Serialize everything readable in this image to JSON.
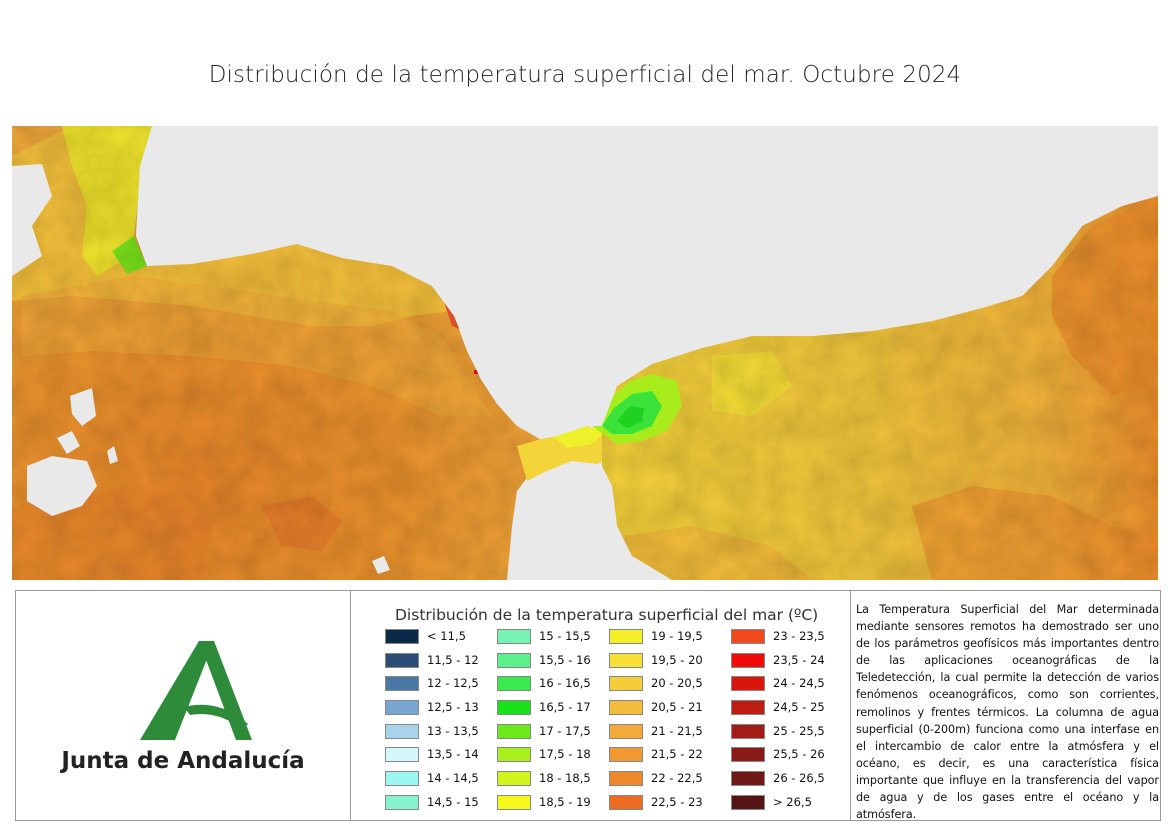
{
  "title": "Distribución de la temperatura superficial del mar. Octubre 2024",
  "map": {
    "land_color": "#e9e9e9",
    "dominant_colors": [
      "#e88a2a",
      "#f1a43a",
      "#f3bf3c",
      "#f4d63a",
      "#eef02a",
      "#9cf01c",
      "#34e22a",
      "#e8452a"
    ]
  },
  "logo": {
    "text": "Junta de Andalucía",
    "color": "#2e8b3a"
  },
  "legend": {
    "title": "Distribución de la temperatura superficial del mar (ºC)",
    "columns": [
      [
        {
          "label": "< 11,5",
          "color": "#0b2a4a"
        },
        {
          "label": "11,5 - 12",
          "color": "#2b4f74"
        },
        {
          "label": "12 - 12,5",
          "color": "#4a78a4"
        },
        {
          "label": "12,5 - 13",
          "color": "#79a6d0"
        },
        {
          "label": "13 - 13,5",
          "color": "#a9d3e8"
        },
        {
          "label": "13,5 - 14",
          "color": "#d3f8fb"
        },
        {
          "label": "14 - 14,5",
          "color": "#9ef6f2"
        },
        {
          "label": "14,5 - 15",
          "color": "#88f2cc"
        }
      ],
      [
        {
          "label": "15 - 15,5",
          "color": "#78f2b2"
        },
        {
          "label": "15,5 - 16",
          "color": "#5ef08a"
        },
        {
          "label": "16 - 16,5",
          "color": "#3ae94e"
        },
        {
          "label": "16,5 - 17",
          "color": "#1ae21a"
        },
        {
          "label": "17 - 17,5",
          "color": "#6de81a"
        },
        {
          "label": "17,5 - 18",
          "color": "#a8f01c"
        },
        {
          "label": "18 - 18,5",
          "color": "#d3f31c"
        },
        {
          "label": "18,5 - 19",
          "color": "#f7f71c"
        }
      ],
      [
        {
          "label": "19 - 19,5",
          "color": "#f5ef2a"
        },
        {
          "label": "19,5 - 20",
          "color": "#f5df38"
        },
        {
          "label": "20 - 20,5",
          "color": "#f4cd3a"
        },
        {
          "label": "20,5 - 21",
          "color": "#f3bc3c"
        },
        {
          "label": "21 - 21,5",
          "color": "#f2ab3a"
        },
        {
          "label": "21,5 - 22",
          "color": "#f19a34"
        },
        {
          "label": "22 - 22,5",
          "color": "#ee882c"
        },
        {
          "label": "22,5 - 23",
          "color": "#ec6c22"
        }
      ],
      [
        {
          "label": "23 - 23,5",
          "color": "#f04a1c"
        },
        {
          "label": "23,5 - 24",
          "color": "#f00a0a"
        },
        {
          "label": "24 - 24,5",
          "color": "#d8160e"
        },
        {
          "label": "24,5 - 25",
          "color": "#bc1c12"
        },
        {
          "label": "25 - 25,5",
          "color": "#a41c16"
        },
        {
          "label": "25,5 - 26",
          "color": "#8a1a16"
        },
        {
          "label": "26 - 26,5",
          "color": "#6e1818"
        },
        {
          "label": "> 26,5",
          "color": "#561414"
        }
      ]
    ]
  },
  "description": "La Temperatura Superficial del Mar determinada mediante sensores remotos ha demostrado ser uno de los parámetros geofísicos más importantes dentro de las aplicaciones oceanográficas de la Teledetección, la cual permite la detección de varios fenómenos oceanográficos, como son corrientes, remolinos y frentes térmicos. La columna de agua superficial (0-200m) funciona como una interfase en el intercambio de calor entre la atmósfera y el océano, es decir, es una característica física importante que influye en la transferencia del vapor de agua y de los gases entre el océano y la atmósfera."
}
